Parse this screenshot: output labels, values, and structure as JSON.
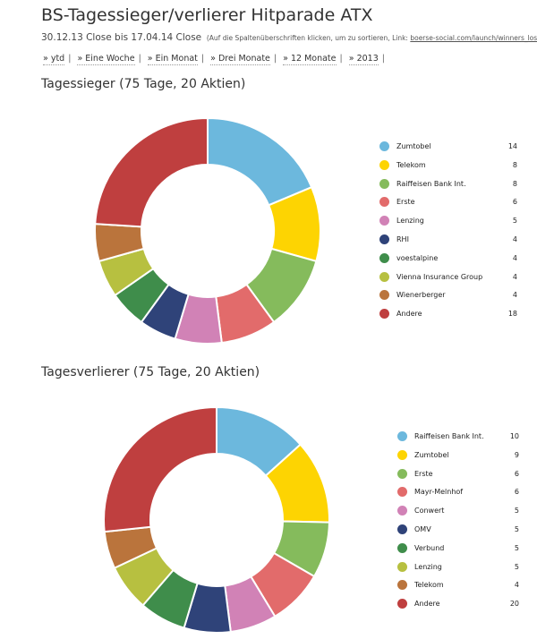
{
  "header": {
    "title": "BS-Tagessieger/verlierer Hitparade ATX",
    "date_range": "30.12.13 Close bis 17.04.14 Close",
    "note_prefix": "(Auf die Spaltenüberschriften klicken, um zu sortieren, Link: ",
    "note_link": "boerse-social.com/launch/winners_losers/atx",
    "note_suffix": ")"
  },
  "nav": {
    "items": [
      "» ytd",
      "» Eine Woche",
      "» Ein Monat",
      "» Drei Monate",
      "» 12 Monate",
      "» 2013"
    ],
    "separator": "|"
  },
  "winners": {
    "title": "Tagessieger (75 Tage, 20 Aktien)"
  },
  "losers": {
    "title": "Tagesverlierer (75 Tage, 20 Aktien)"
  },
  "chart_data": [
    {
      "type": "pie",
      "title": "Tagessieger (75 Tage, 20 Aktien)",
      "donut": true,
      "legend_position": "right",
      "categories": [
        "Zumtobel",
        "Telekom",
        "Raiffeisen Bank Int.",
        "Erste",
        "Lenzing",
        "RHI",
        "voestalpine",
        "Vienna Insurance Group",
        "Wienerberger",
        "Andere"
      ],
      "values": [
        14,
        8,
        8,
        6,
        5,
        4,
        4,
        4,
        4,
        18
      ],
      "colors": [
        "#6cb8dd",
        "#fdd402",
        "#85bb5c",
        "#e26b6b",
        "#d182b6",
        "#2f4379",
        "#3f8d4b",
        "#b7c040",
        "#ba743c",
        "#bf3f3f"
      ]
    },
    {
      "type": "pie",
      "title": "Tagesverlierer (75 Tage, 20 Aktien)",
      "donut": true,
      "legend_position": "right",
      "categories": [
        "Raiffeisen Bank Int.",
        "Zumtobel",
        "Erste",
        "Mayr-Melnhof",
        "Conwert",
        "OMV",
        "Verbund",
        "Lenzing",
        "Telekom",
        "Andere"
      ],
      "values": [
        10,
        9,
        6,
        6,
        5,
        5,
        5,
        5,
        4,
        20
      ],
      "colors": [
        "#6cb8dd",
        "#fdd402",
        "#85bb5c",
        "#e26b6b",
        "#d182b6",
        "#2f4379",
        "#3f8d4b",
        "#b7c040",
        "#ba743c",
        "#bf3f3f"
      ]
    }
  ]
}
